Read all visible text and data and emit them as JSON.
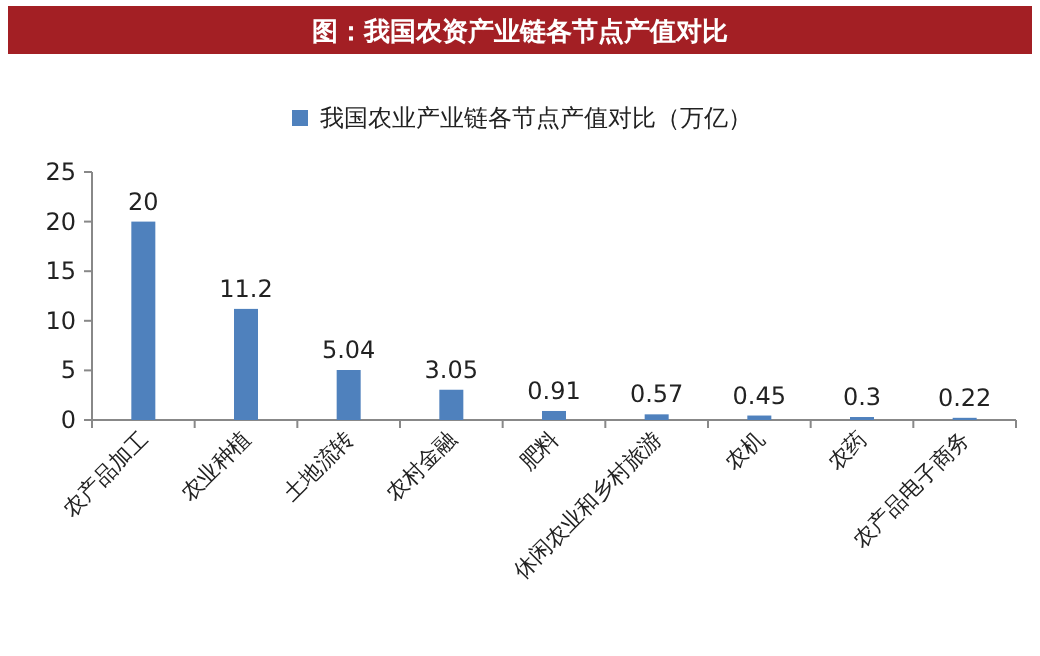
{
  "chart_data": {
    "type": "bar",
    "title": "图：我国农资产业链各节点产值对比",
    "categories": [
      "农产品加工",
      "农业种植",
      "土地流转",
      "农村金融",
      "肥料",
      "休闲农业和乡村旅游",
      "农机",
      "农药",
      "农产品电子商务"
    ],
    "series": [
      {
        "name": "我国农业产业链各节点产值对比（万亿）",
        "color": "#4f81bd",
        "values": [
          20,
          11.2,
          5.04,
          3.05,
          0.91,
          0.57,
          0.45,
          0.3,
          0.22
        ]
      }
    ],
    "ylim": [
      0,
      25
    ],
    "yticks": [
      0,
      5,
      10,
      15,
      20,
      25
    ],
    "data_labels": true,
    "legend": "top",
    "grid": false
  }
}
